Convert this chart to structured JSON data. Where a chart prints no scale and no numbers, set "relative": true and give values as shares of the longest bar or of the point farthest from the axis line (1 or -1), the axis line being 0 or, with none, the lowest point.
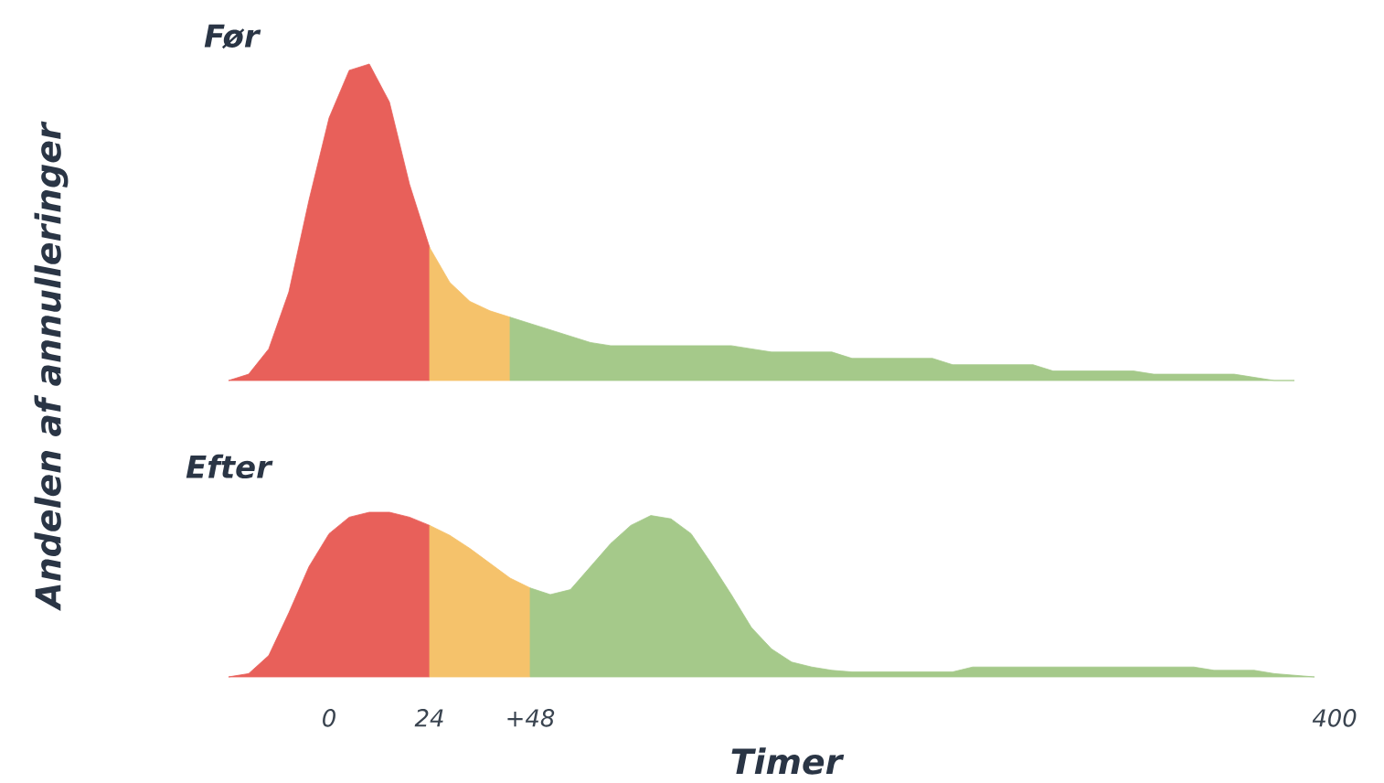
{
  "chart_data": [
    {
      "type": "area",
      "title": "Før",
      "ylabel": "Andelen af annulleringer",
      "relative": true,
      "categories": [
        null,
        null,
        null,
        null,
        null,
        null,
        null,
        null,
        null,
        null,
        null,
        null,
        null,
        null,
        null,
        null,
        null,
        null,
        null,
        null,
        null,
        null,
        null,
        null,
        null,
        null,
        null,
        null,
        null,
        null,
        null,
        null,
        null,
        null,
        null,
        null,
        null,
        null,
        null,
        null,
        null,
        null,
        null,
        null,
        null,
        null,
        null,
        null,
        null,
        null,
        null,
        null,
        null,
        null,
        null,
        null
      ],
      "series": [
        {
          "color": "#e8605a",
          "values": [
            0,
            0.02,
            0.1,
            0.28,
            0.57,
            0.83,
            0.98,
            1.0,
            0.88,
            0.62,
            0.42,
            null,
            null,
            null,
            null,
            null,
            null,
            null,
            null,
            null,
            null,
            null,
            null,
            null,
            null,
            null,
            null,
            null,
            null,
            null,
            null,
            null,
            null,
            null,
            null,
            null,
            null,
            null,
            null,
            null,
            null,
            null,
            null,
            null,
            null,
            null,
            null,
            null,
            null,
            null,
            null,
            null,
            null,
            null,
            null,
            null
          ]
        },
        {
          "color": "#f5c26b",
          "values": [
            null,
            null,
            null,
            null,
            null,
            null,
            null,
            null,
            null,
            null,
            0.42,
            0.31,
            0.25,
            0.22,
            0.2,
            null,
            null,
            null,
            null,
            null,
            null,
            null,
            null,
            null,
            null,
            null,
            null,
            null,
            null,
            null,
            null,
            null,
            null,
            null,
            null,
            null,
            null,
            null,
            null,
            null,
            null,
            null,
            null,
            null,
            null,
            null,
            null,
            null,
            null,
            null,
            null,
            null,
            null,
            null,
            null,
            null
          ]
        },
        {
          "color": "#a5c98a",
          "values": [
            null,
            null,
            null,
            null,
            null,
            null,
            null,
            null,
            null,
            null,
            null,
            null,
            null,
            null,
            0.2,
            0.18,
            0.16,
            0.14,
            0.12,
            0.11,
            0.11,
            0.11,
            0.11,
            0.11,
            0.11,
            0.11,
            0.1,
            0.09,
            0.09,
            0.09,
            0.09,
            0.07,
            0.07,
            0.07,
            0.07,
            0.07,
            0.05,
            0.05,
            0.05,
            0.05,
            0.05,
            0.03,
            0.03,
            0.03,
            0.03,
            0.03,
            0.02,
            0.02,
            0.02,
            0.02,
            0.02,
            0.01,
            0,
            0,
            null,
            null
          ]
        }
      ]
    },
    {
      "type": "area",
      "title": "Efter",
      "xlabel": "Timer",
      "relative": true,
      "categories": [
        null,
        null,
        null,
        null,
        null,
        "0",
        null,
        null,
        null,
        null,
        "24",
        null,
        null,
        null,
        null,
        "+48",
        null,
        null,
        null,
        null,
        null,
        null,
        null,
        null,
        null,
        null,
        null,
        null,
        null,
        null,
        null,
        null,
        null,
        null,
        null,
        null,
        null,
        null,
        null,
        null,
        null,
        null,
        null,
        null,
        null,
        null,
        null,
        null,
        null,
        null,
        null,
        null,
        null,
        null,
        null,
        "400"
      ],
      "series": [
        {
          "color": "#e8605a",
          "values": [
            0,
            0.02,
            0.13,
            0.39,
            0.67,
            0.87,
            0.97,
            1.0,
            1.0,
            0.97,
            0.92,
            null,
            null,
            null,
            null,
            null,
            null,
            null,
            null,
            null,
            null,
            null,
            null,
            null,
            null,
            null,
            null,
            null,
            null,
            null,
            null,
            null,
            null,
            null,
            null,
            null,
            null,
            null,
            null,
            null,
            null,
            null,
            null,
            null,
            null,
            null,
            null,
            null,
            null,
            null,
            null,
            null,
            null,
            null,
            null,
            null
          ]
        },
        {
          "color": "#f5c26b",
          "values": [
            null,
            null,
            null,
            null,
            null,
            null,
            null,
            null,
            null,
            null,
            0.92,
            0.86,
            0.78,
            0.69,
            0.6,
            0.54,
            null,
            null,
            null,
            null,
            null,
            null,
            null,
            null,
            null,
            null,
            null,
            null,
            null,
            null,
            null,
            null,
            null,
            null,
            null,
            null,
            null,
            null,
            null,
            null,
            null,
            null,
            null,
            null,
            null,
            null,
            null,
            null,
            null,
            null,
            null,
            null,
            null,
            null,
            null,
            null
          ]
        },
        {
          "color": "#a5c98a",
          "values": [
            null,
            null,
            null,
            null,
            null,
            null,
            null,
            null,
            null,
            null,
            null,
            null,
            null,
            null,
            null,
            0.54,
            0.5,
            0.53,
            0.67,
            0.81,
            0.92,
            0.98,
            0.96,
            0.87,
            0.69,
            0.5,
            0.3,
            0.17,
            0.09,
            0.06,
            0.04,
            0.03,
            0.03,
            0.03,
            0.03,
            0.03,
            0.03,
            0.06,
            0.06,
            0.06,
            0.06,
            0.06,
            0.06,
            0.06,
            0.06,
            0.06,
            0.06,
            0.06,
            0.06,
            0.04,
            0.04,
            0.04,
            0.02,
            0.01,
            0,
            null
          ]
        }
      ]
    }
  ]
}
